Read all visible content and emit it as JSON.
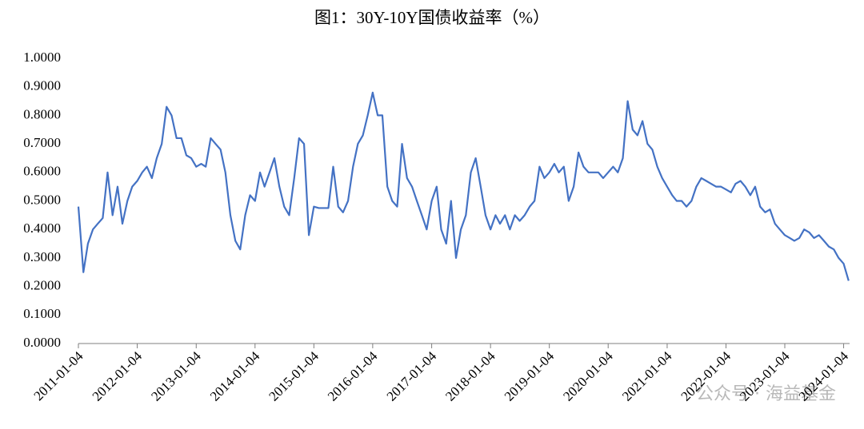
{
  "chart_data": {
    "type": "line",
    "title": "图1：30Y-10Y国债收益率（%）",
    "watermark": "公众号 · 海益基金",
    "x": [
      "2011-01-04",
      "2011-02-04",
      "2011-03-04",
      "2011-04-04",
      "2011-05-04",
      "2011-06-04",
      "2011-07-04",
      "2011-08-04",
      "2011-09-04",
      "2011-10-04",
      "2011-11-04",
      "2011-12-04",
      "2012-01-04",
      "2012-02-04",
      "2012-03-04",
      "2012-04-04",
      "2012-05-04",
      "2012-06-04",
      "2012-07-04",
      "2012-08-04",
      "2012-09-04",
      "2012-10-04",
      "2012-11-04",
      "2012-12-04",
      "2013-01-04",
      "2013-02-04",
      "2013-03-04",
      "2013-04-04",
      "2013-05-04",
      "2013-06-04",
      "2013-07-04",
      "2013-08-04",
      "2013-09-04",
      "2013-10-04",
      "2013-11-04",
      "2013-12-04",
      "2014-01-04",
      "2014-02-04",
      "2014-03-04",
      "2014-04-04",
      "2014-05-04",
      "2014-06-04",
      "2014-07-04",
      "2014-08-04",
      "2014-09-04",
      "2014-10-04",
      "2014-11-04",
      "2014-12-04",
      "2015-01-04",
      "2015-02-04",
      "2015-03-04",
      "2015-04-04",
      "2015-05-04",
      "2015-06-04",
      "2015-07-04",
      "2015-08-04",
      "2015-09-04",
      "2015-10-04",
      "2015-11-04",
      "2015-12-04",
      "2016-01-04",
      "2016-02-04",
      "2016-03-04",
      "2016-04-04",
      "2016-05-04",
      "2016-06-04",
      "2016-07-04",
      "2016-08-04",
      "2016-09-04",
      "2016-10-04",
      "2016-11-04",
      "2016-12-04",
      "2017-01-04",
      "2017-02-04",
      "2017-03-04",
      "2017-04-04",
      "2017-05-04",
      "2017-06-04",
      "2017-07-04",
      "2017-08-04",
      "2017-09-04",
      "2017-10-04",
      "2017-11-04",
      "2017-12-04",
      "2018-01-04",
      "2018-02-04",
      "2018-03-04",
      "2018-04-04",
      "2018-05-04",
      "2018-06-04",
      "2018-07-04",
      "2018-08-04",
      "2018-09-04",
      "2018-10-04",
      "2018-11-04",
      "2018-12-04",
      "2019-01-04",
      "2019-02-04",
      "2019-03-04",
      "2019-04-04",
      "2019-05-04",
      "2019-06-04",
      "2019-07-04",
      "2019-08-04",
      "2019-09-04",
      "2019-10-04",
      "2019-11-04",
      "2019-12-04",
      "2020-01-04",
      "2020-02-04",
      "2020-03-04",
      "2020-04-04",
      "2020-05-04",
      "2020-06-04",
      "2020-07-04",
      "2020-08-04",
      "2020-09-04",
      "2020-10-04",
      "2020-11-04",
      "2020-12-04",
      "2021-01-04",
      "2021-02-04",
      "2021-03-04",
      "2021-04-04",
      "2021-05-04",
      "2021-06-04",
      "2021-07-04",
      "2021-08-04",
      "2021-09-04",
      "2021-10-04",
      "2021-11-04",
      "2021-12-04",
      "2022-01-04",
      "2022-02-04",
      "2022-03-04",
      "2022-04-04",
      "2022-05-04",
      "2022-06-04",
      "2022-07-04",
      "2022-08-04",
      "2022-09-04",
      "2022-10-04",
      "2022-11-04",
      "2022-12-04",
      "2023-01-04",
      "2023-02-04",
      "2023-03-04",
      "2023-04-04",
      "2023-05-04",
      "2023-06-04",
      "2023-07-04",
      "2023-08-04",
      "2023-09-04",
      "2023-10-04",
      "2023-11-04",
      "2023-12-04",
      "2024-01-04",
      "2024-02-04"
    ],
    "series": [
      {
        "name": "30Y-10Y",
        "color": "#4472c4",
        "values": [
          0.48,
          0.25,
          0.35,
          0.4,
          0.42,
          0.44,
          0.6,
          0.45,
          0.55,
          0.42,
          0.5,
          0.55,
          0.57,
          0.6,
          0.62,
          0.58,
          0.65,
          0.7,
          0.83,
          0.8,
          0.72,
          0.72,
          0.66,
          0.65,
          0.62,
          0.63,
          0.62,
          0.72,
          0.7,
          0.68,
          0.6,
          0.45,
          0.36,
          0.33,
          0.45,
          0.52,
          0.5,
          0.6,
          0.55,
          0.6,
          0.65,
          0.55,
          0.48,
          0.45,
          0.58,
          0.72,
          0.7,
          0.38,
          0.48,
          0.475,
          0.475,
          0.475,
          0.62,
          0.48,
          0.46,
          0.5,
          0.62,
          0.7,
          0.73,
          0.8,
          0.88,
          0.8,
          0.8,
          0.55,
          0.5,
          0.48,
          0.7,
          0.58,
          0.55,
          0.5,
          0.45,
          0.4,
          0.5,
          0.55,
          0.4,
          0.35,
          0.5,
          0.3,
          0.4,
          0.45,
          0.6,
          0.65,
          0.55,
          0.45,
          0.4,
          0.45,
          0.42,
          0.45,
          0.4,
          0.45,
          0.43,
          0.45,
          0.48,
          0.5,
          0.62,
          0.58,
          0.6,
          0.63,
          0.6,
          0.62,
          0.5,
          0.55,
          0.67,
          0.62,
          0.6,
          0.6,
          0.6,
          0.58,
          0.6,
          0.62,
          0.6,
          0.65,
          0.85,
          0.75,
          0.73,
          0.78,
          0.7,
          0.68,
          0.62,
          0.58,
          0.55,
          0.52,
          0.5,
          0.5,
          0.48,
          0.5,
          0.55,
          0.58,
          0.57,
          0.56,
          0.55,
          0.55,
          0.54,
          0.53,
          0.56,
          0.57,
          0.55,
          0.52,
          0.55,
          0.48,
          0.46,
          0.47,
          0.42,
          0.4,
          0.38,
          0.37,
          0.36,
          0.37,
          0.4,
          0.39,
          0.37,
          0.38,
          0.36,
          0.34,
          0.33,
          0.3,
          0.28,
          0.22
        ]
      }
    ],
    "xlim": [
      "2011-01-04",
      "2024-02-10"
    ],
    "xticks": [
      "2011-01-04",
      "2012-01-04",
      "2013-01-04",
      "2014-01-04",
      "2015-01-04",
      "2016-01-04",
      "2017-01-04",
      "2018-01-04",
      "2019-01-04",
      "2020-01-04",
      "2021-01-04",
      "2022-01-04",
      "2023-01-04",
      "2024-01-04"
    ],
    "ylim": [
      0,
      1
    ],
    "yticks": [
      {
        "value": 0,
        "label": "0.0000"
      },
      {
        "value": 0.1,
        "label": "0.1000"
      },
      {
        "value": 0.2,
        "label": "0.2000"
      },
      {
        "value": 0.3,
        "label": "0.3000"
      },
      {
        "value": 0.4,
        "label": "0.4000"
      },
      {
        "value": 0.5,
        "label": "0.5000"
      },
      {
        "value": 0.6,
        "label": "0.6000"
      },
      {
        "value": 0.7,
        "label": "0.7000"
      },
      {
        "value": 0.8,
        "label": "0.8000"
      },
      {
        "value": 0.9,
        "label": "0.9000"
      },
      {
        "value": 1,
        "label": "1.0000"
      }
    ],
    "grid": false
  }
}
